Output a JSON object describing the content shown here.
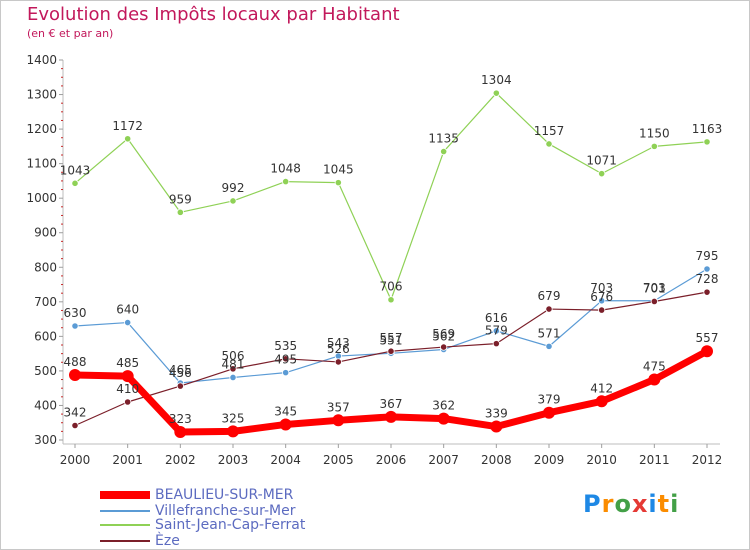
{
  "header": {
    "title": "Evolution des Impôts locaux par Habitant",
    "subtitle": "(en € et par an)"
  },
  "logo": {
    "text": "Proxiti",
    "letters": [
      {
        "ch": "P",
        "color": "#1e88e5"
      },
      {
        "ch": "r",
        "color": "#fb8c00"
      },
      {
        "ch": "o",
        "color": "#43a047"
      },
      {
        "ch": "x",
        "color": "#e53935"
      },
      {
        "ch": "i",
        "color": "#1e88e5"
      },
      {
        "ch": "t",
        "color": "#fb8c00"
      },
      {
        "ch": "i",
        "color": "#43a047"
      }
    ]
  },
  "chart_data": {
    "type": "line",
    "title": "Evolution des Impôts locaux par Habitant",
    "subtitle": "(en € et par an)",
    "x": [
      "2000",
      "2001",
      "2002",
      "2003",
      "2004",
      "2005",
      "2006",
      "2007",
      "2008",
      "2009",
      "2010",
      "2011",
      "2012"
    ],
    "ylim": [
      300,
      1400
    ],
    "yticks": [
      300,
      400,
      500,
      600,
      700,
      800,
      900,
      1000,
      1100,
      1200,
      1300,
      1400
    ],
    "grid": false,
    "legend_position": "bottom",
    "series": [
      {
        "name": "BEAULIEU-SUR-MER",
        "color": "#ff0000",
        "values": [
          488,
          485,
          323,
          325,
          345,
          357,
          367,
          362,
          339,
          379,
          412,
          475,
          557
        ],
        "labels": [
          "488",
          "485",
          "323",
          "325",
          "345",
          "357",
          "367",
          "362",
          "339",
          "379",
          "412",
          "475",
          "557"
        ]
      },
      {
        "name": "Villefranche-sur-Mer",
        "color": "#5b9bd5",
        "values": [
          630,
          640,
          465,
          481,
          495,
          543,
          551,
          562,
          616,
          571,
          703,
          703,
          795
        ],
        "labels": [
          "630",
          "640",
          "465",
          "481",
          "495",
          "543",
          "551",
          "562",
          "616",
          "571",
          "703",
          "703",
          "795"
        ]
      },
      {
        "name": "Saint-Jean-Cap-Ferrat",
        "color": "#8fd156",
        "values": [
          1043,
          1172,
          959,
          992,
          1048,
          1045,
          706,
          1135,
          1304,
          1157,
          1071,
          1150,
          1163
        ],
        "labels": [
          "1043",
          "1172",
          "959",
          "992",
          "1048",
          "1045",
          "706",
          "1135",
          "1304",
          "1157",
          "1071",
          "1150",
          "1163"
        ]
      },
      {
        "name": "Èze",
        "color": "#7b1f2a",
        "values": [
          342,
          410,
          456,
          506,
          535,
          526,
          557,
          569,
          579,
          679,
          676,
          701,
          728
        ],
        "labels": [
          "342",
          "410",
          "456",
          "506",
          "535",
          "526",
          "557",
          "569",
          "579",
          "679",
          "676",
          "701",
          "728"
        ]
      }
    ]
  }
}
